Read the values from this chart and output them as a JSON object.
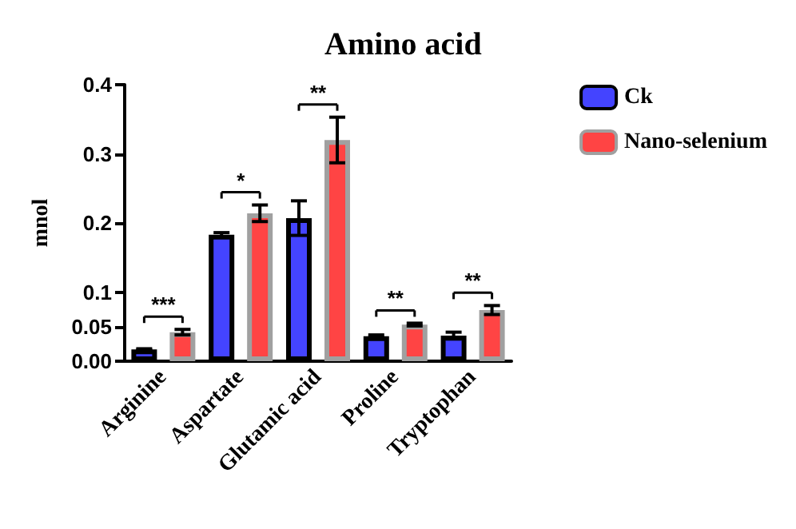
{
  "chart_data": {
    "type": "bar",
    "title": "Amino acid",
    "ylabel": "mnol",
    "categories": [
      "Arginine",
      "Aspartate",
      "Glutamic acid",
      "Proline",
      "Tryptophan"
    ],
    "series": [
      {
        "name": "Ck",
        "color": "#4444ff",
        "values": [
          0.017,
          0.183,
          0.207,
          0.036,
          0.037
        ],
        "errors": [
          0.001,
          0.003,
          0.025,
          0.002,
          0.005
        ]
      },
      {
        "name": "Nano-selenium",
        "color": "#ff4444",
        "values": [
          0.042,
          0.214,
          0.32,
          0.053,
          0.074
        ],
        "errors": [
          0.004,
          0.012,
          0.033,
          0.002,
          0.0065
        ]
      }
    ],
    "ylim": [
      0,
      0.4
    ],
    "yticks": [
      {
        "value": 0,
        "label": "0.00"
      },
      0.05,
      0.1,
      0.2,
      0.3,
      0.4
    ],
    "annotations": [
      "***",
      "*",
      "**",
      "**",
      "**"
    ],
    "legend": "top right",
    "grid": false
  }
}
